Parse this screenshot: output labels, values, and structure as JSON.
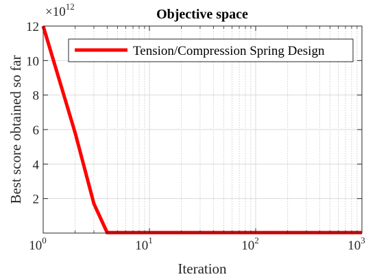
{
  "chart_data": {
    "type": "line",
    "title": "Objective space",
    "xlabel": "Iteration",
    "ylabel": "Best score obtained so far",
    "x_scale": "log",
    "xlim": [
      1,
      1000
    ],
    "ylim": [
      0,
      12
    ],
    "y_multiplier_label": "×10",
    "y_multiplier_exponent": "12",
    "x_ticks": [
      {
        "value": 1,
        "base": "10",
        "exp": "0"
      },
      {
        "value": 10,
        "base": "10",
        "exp": "1"
      },
      {
        "value": 100,
        "base": "10",
        "exp": "2"
      },
      {
        "value": 1000,
        "base": "10",
        "exp": "3"
      }
    ],
    "y_ticks": [
      {
        "value": 2,
        "label": "2"
      },
      {
        "value": 4,
        "label": "4"
      },
      {
        "value": 6,
        "label": "6"
      },
      {
        "value": 8,
        "label": "8"
      },
      {
        "value": 10,
        "label": "10"
      },
      {
        "value": 12,
        "label": "12"
      }
    ],
    "grid": true,
    "legend_position": "top-right",
    "series": [
      {
        "name": "Tension/Compression Spring Design",
        "color": "#ff0000",
        "x": [
          1,
          2,
          3,
          4,
          10,
          100,
          1000
        ],
        "y": [
          12.0,
          5.8,
          1.7,
          0.03,
          0.03,
          0.03,
          0.03
        ]
      }
    ]
  }
}
